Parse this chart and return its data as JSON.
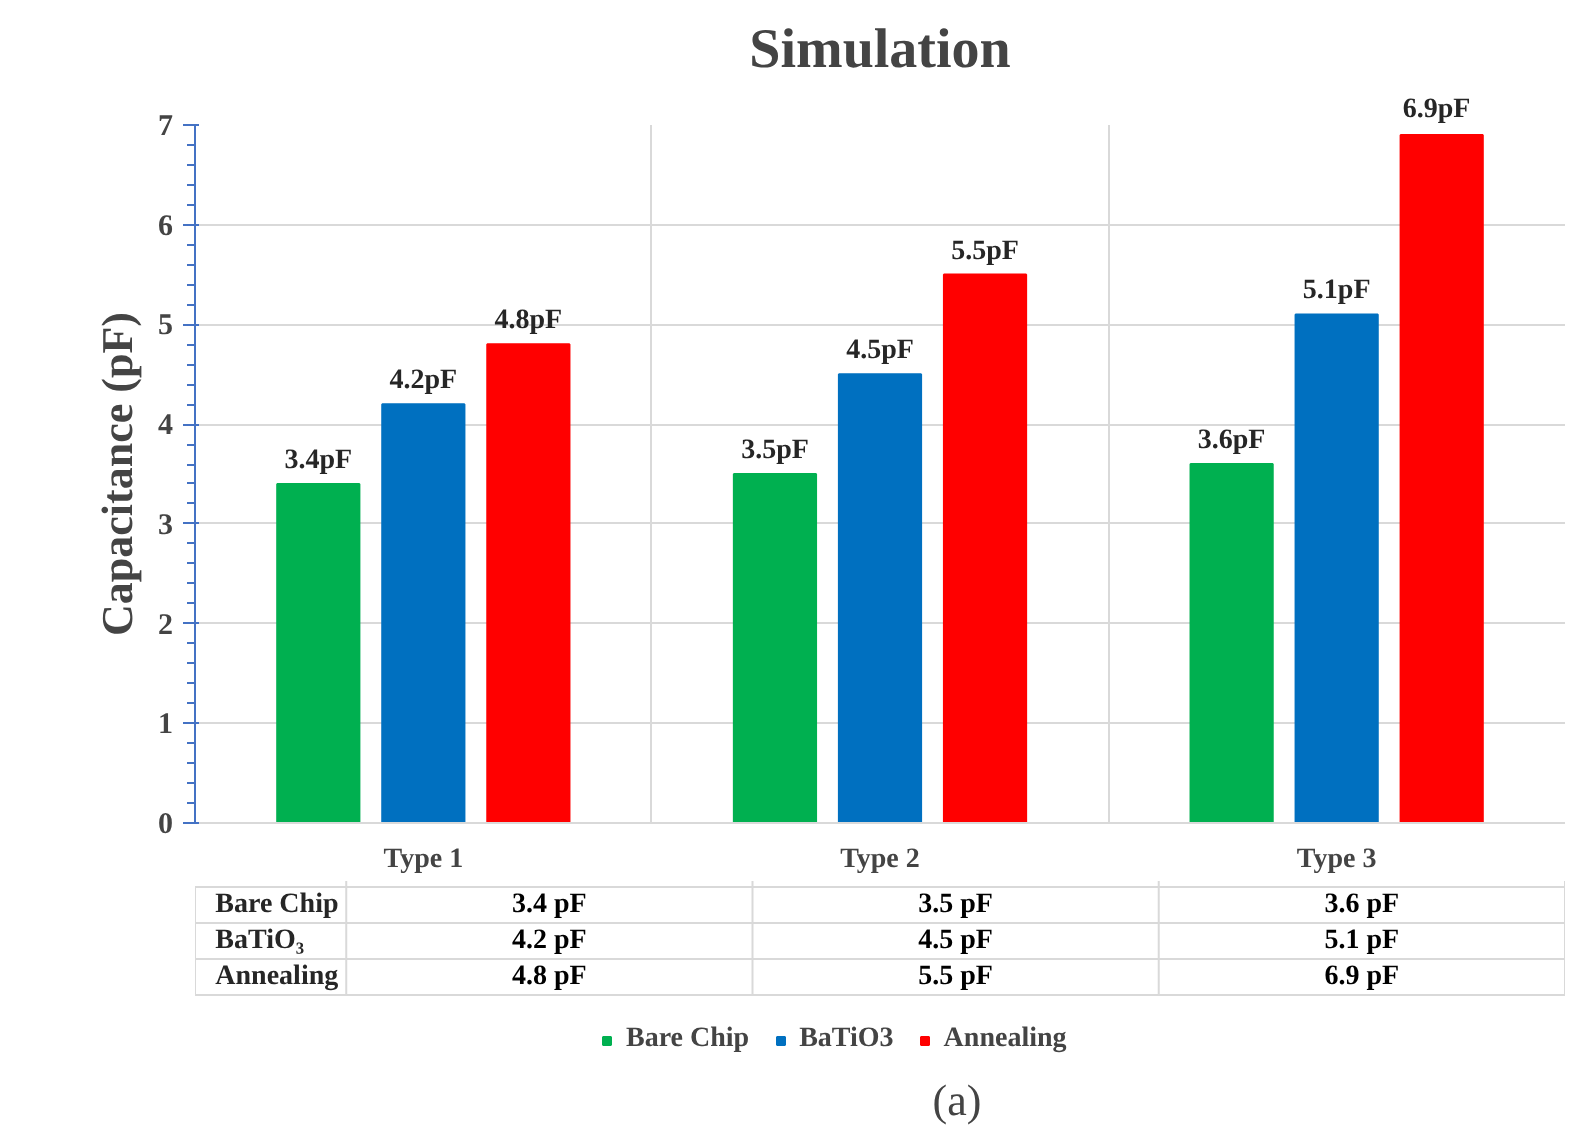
{
  "chart_data": {
    "type": "bar",
    "title": "Simulation",
    "ylabel": "Capacitance (pF)",
    "categories": [
      "Type 1",
      "Type 2",
      "Type 3"
    ],
    "series": [
      {
        "name": "Bare Chip",
        "color": "#00b050",
        "values": [
          3.4,
          3.5,
          3.6
        ],
        "value_labels": [
          "3.4pF",
          "3.5pF",
          "3.6pF"
        ]
      },
      {
        "name": "BaTiO3",
        "color": "#0070c0",
        "values": [
          4.2,
          4.5,
          5.1
        ],
        "value_labels": [
          "4.2pF",
          "4.5pF",
          "5.1pF"
        ]
      },
      {
        "name": "Annealing",
        "color": "#ff0000",
        "values": [
          4.8,
          5.5,
          6.9
        ],
        "value_labels": [
          "4.8pF",
          "5.5pF",
          "6.9pF"
        ]
      }
    ],
    "ylim": [
      0,
      7
    ],
    "yticks": [
      0,
      1,
      2,
      3,
      4,
      5,
      6,
      7
    ],
    "grid": true,
    "legend": "bottom",
    "annotations": [
      "Bare Chip",
      "BaTiO₃",
      "Annealing",
      "3.4 pF",
      "3.5 pF",
      "3.6 pF",
      "4.2 pF",
      "4.5 pF",
      "5.1 pF",
      "4.8 pF",
      "5.5 pF",
      "6.9 pF",
      "(a)"
    ]
  }
}
